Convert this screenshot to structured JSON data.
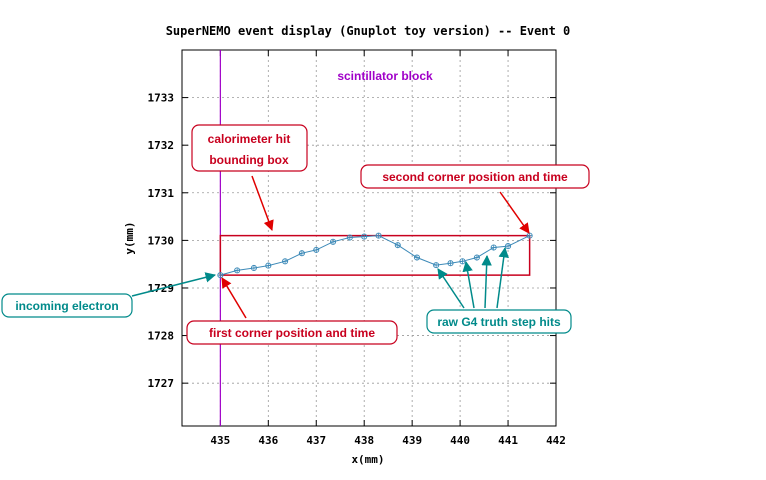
{
  "chart_data": {
    "type": "line",
    "title": "SuperNEMO event display (Gnuplot toy version) -- Event 0",
    "xlabel": "x(mm)",
    "ylabel": "y(mm)",
    "xlim": [
      434.2,
      442.0
    ],
    "ylim": [
      1726.1,
      1734.0
    ],
    "xticks": [
      "435",
      "436",
      "437",
      "438",
      "439",
      "440",
      "441",
      "442"
    ],
    "yticks": [
      "1727",
      "1728",
      "1729",
      "1730",
      "1731",
      "1732",
      "1733"
    ],
    "grid": true,
    "scintillator_x": 435.0,
    "bounding_box": {
      "x": [
        435.0,
        441.45
      ],
      "y": [
        1729.27,
        1730.1
      ]
    },
    "series": [
      {
        "x": [
          435.0,
          435.35,
          435.7,
          436.0,
          436.35,
          436.7,
          437.0,
          437.35,
          437.7,
          438.0,
          438.3,
          438.7,
          439.1,
          439.5,
          439.8,
          440.05,
          440.35,
          440.7,
          441.0,
          441.45
        ],
        "y": [
          1729.27,
          1729.37,
          1729.42,
          1729.47,
          1729.56,
          1729.73,
          1729.8,
          1729.97,
          1730.06,
          1730.08,
          1730.1,
          1729.9,
          1729.64,
          1729.48,
          1729.52,
          1729.56,
          1729.64,
          1729.85,
          1729.88,
          1730.1
        ]
      }
    ],
    "annotations": {
      "scintillator": "scintillator block",
      "calo_line1": "calorimeter hit",
      "calo_line2": "bounding box",
      "second_corner": "second corner position and time",
      "first_corner": "first corner position and time",
      "incoming": "incoming electron",
      "g4hits": "raw G4 truth step hits"
    }
  },
  "colors": {
    "track": "#3d8ab8",
    "box": "#c8001e",
    "scintillator": "#a000c8",
    "teal": "#008a8a",
    "red_arrow": "#e00000",
    "grid": "#9a9a9a"
  }
}
